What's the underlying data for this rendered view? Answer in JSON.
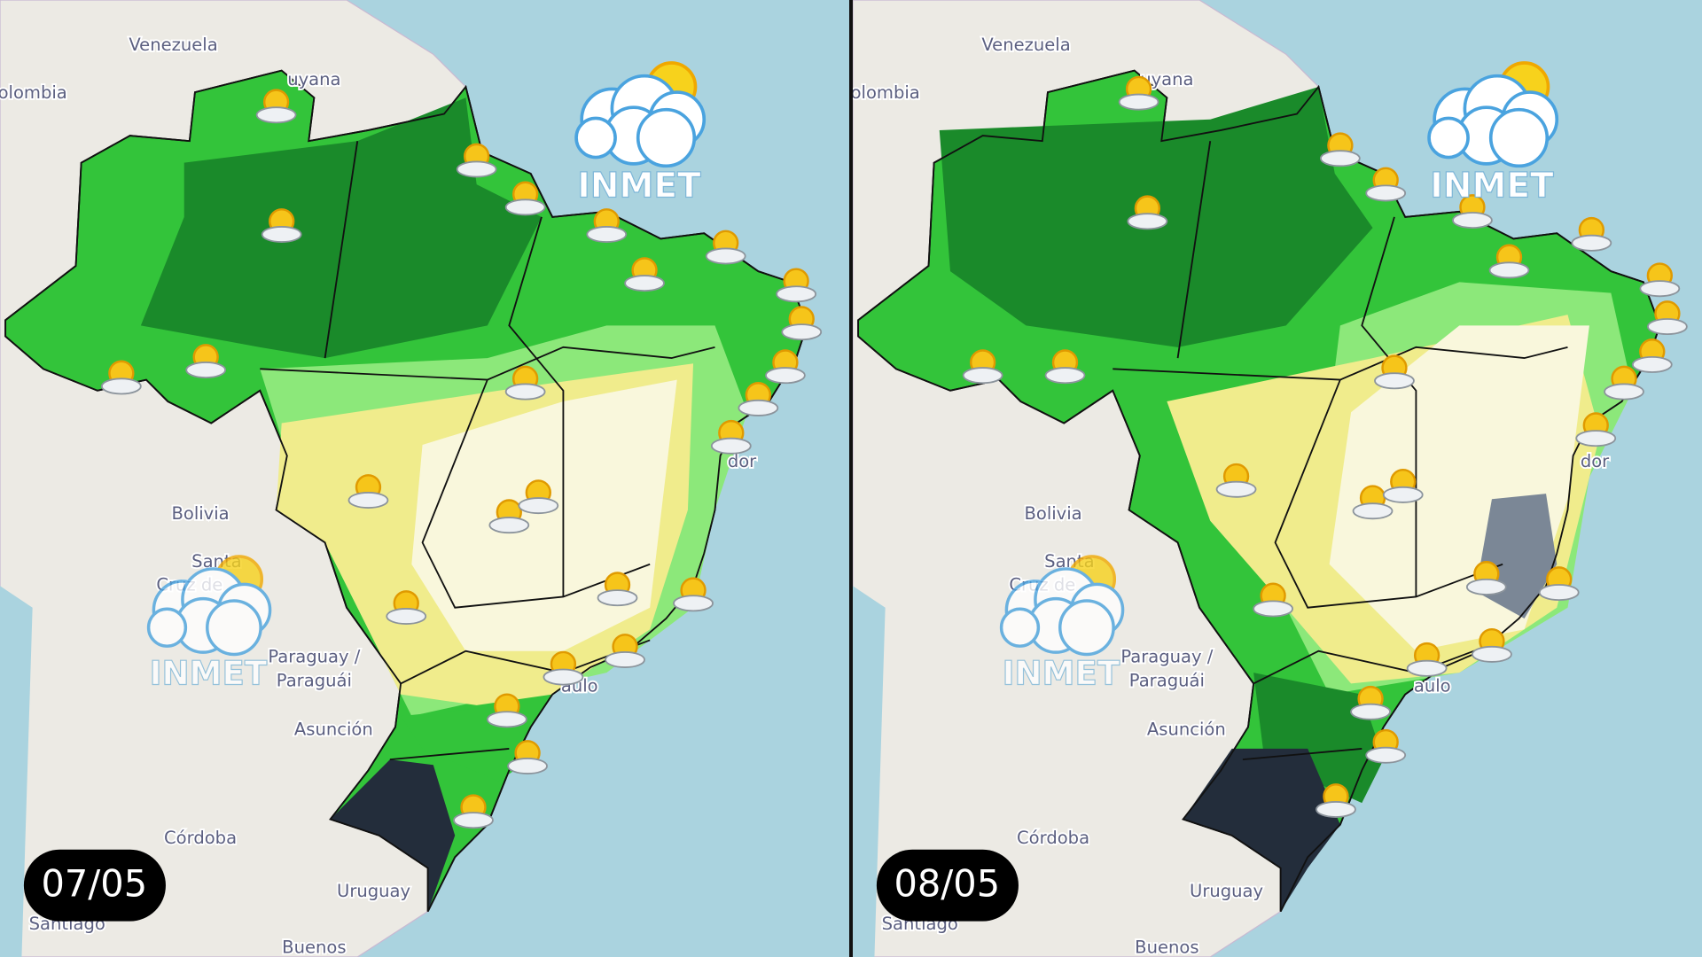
{
  "logo": "INMET",
  "labels": [
    "Venezuela",
    "uyana",
    "olombia",
    "Bolivia",
    "Santa",
    "Cruz de",
    "Paraguay /",
    "Paraguái",
    "Asunción",
    "Córdoba",
    "Uruguay",
    "Santiago",
    "Buenos",
    "aulo",
    "dor"
  ],
  "panels": [
    {
      "date": "07/05"
    },
    {
      "date": "08/05"
    }
  ]
}
